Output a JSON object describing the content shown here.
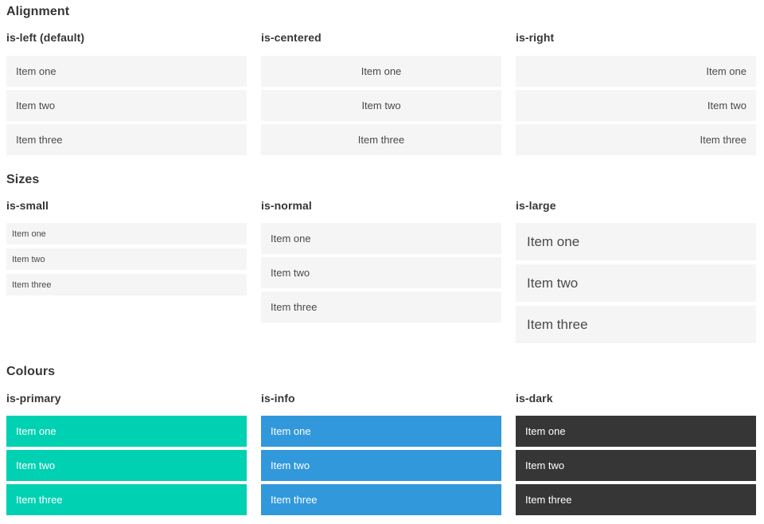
{
  "sections": [
    {
      "title": "Alignment",
      "columns": [
        {
          "heading": "is-left (default)",
          "modifier": "is-left",
          "items": [
            "Item one",
            "Item two",
            "Item three"
          ]
        },
        {
          "heading": "is-centered",
          "modifier": "is-centered",
          "items": [
            "Item one",
            "Item two",
            "Item three"
          ]
        },
        {
          "heading": "is-right",
          "modifier": "is-right",
          "items": [
            "Item one",
            "Item two",
            "Item three"
          ]
        }
      ]
    },
    {
      "title": "Sizes",
      "columns": [
        {
          "heading": "is-small",
          "modifier": "is-small",
          "items": [
            "Item one",
            "Item two",
            "Item three"
          ]
        },
        {
          "heading": "is-normal",
          "modifier": "is-normal",
          "items": [
            "Item one",
            "Item two",
            "Item three"
          ]
        },
        {
          "heading": "is-large",
          "modifier": "is-large",
          "items": [
            "Item one",
            "Item two",
            "Item three"
          ]
        }
      ]
    },
    {
      "title": "Colours",
      "columns": [
        {
          "heading": "is-primary",
          "modifier": "is-primary",
          "items": [
            "Item one",
            "Item two",
            "Item three"
          ]
        },
        {
          "heading": "is-info",
          "modifier": "is-info",
          "items": [
            "Item one",
            "Item two",
            "Item three"
          ]
        },
        {
          "heading": "is-dark",
          "modifier": "is-dark",
          "items": [
            "Item one",
            "Item two",
            "Item three"
          ]
        }
      ]
    }
  ],
  "colors": {
    "page_background": "#ffffff",
    "heading_text": "#363636",
    "item_background": "#f5f5f5",
    "item_text": "#4a4a4a",
    "modifiers": {
      "is-primary": {
        "background": "#00d1b2",
        "text": "#ffffff"
      },
      "is-info": {
        "background": "#3298dc",
        "text": "#ffffff"
      },
      "is-dark": {
        "background": "#363636",
        "text": "#ffffff"
      }
    }
  }
}
